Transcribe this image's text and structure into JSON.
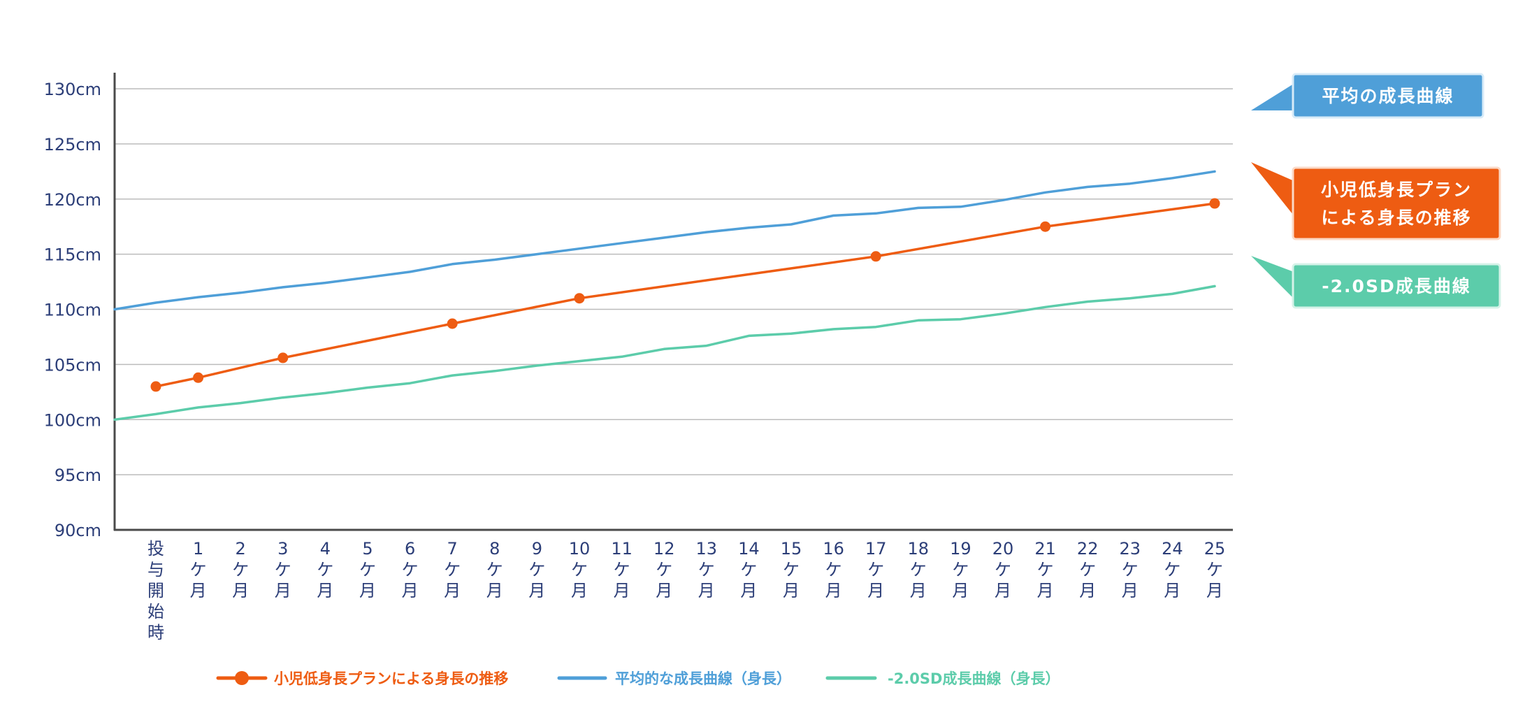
{
  "chart_data": {
    "type": "line",
    "ylim": [
      90,
      130
    ],
    "y_tick_labels": [
      "90cm",
      "95cm",
      "100cm",
      "105cm",
      "110cm",
      "115cm",
      "120cm",
      "125cm",
      "130cm"
    ],
    "y_tick_values": [
      90,
      95,
      100,
      105,
      110,
      115,
      120,
      125,
      130
    ],
    "x_tick_labels": [
      [
        "投",
        "与",
        "開",
        "始",
        "時"
      ],
      [
        "1",
        "ケ",
        "月"
      ],
      [
        "2",
        "ケ",
        "月"
      ],
      [
        "3",
        "ケ",
        "月"
      ],
      [
        "4",
        "ケ",
        "月"
      ],
      [
        "5",
        "ケ",
        "月"
      ],
      [
        "6",
        "ケ",
        "月"
      ],
      [
        "7",
        "ケ",
        "月"
      ],
      [
        "8",
        "ケ",
        "月"
      ],
      [
        "9",
        "ケ",
        "月"
      ],
      [
        "10",
        "ケ",
        "月"
      ],
      [
        "11",
        "ケ",
        "月"
      ],
      [
        "12",
        "ケ",
        "月"
      ],
      [
        "13",
        "ケ",
        "月"
      ],
      [
        "14",
        "ケ",
        "月"
      ],
      [
        "15",
        "ケ",
        "月"
      ],
      [
        "16",
        "ケ",
        "月"
      ],
      [
        "17",
        "ケ",
        "月"
      ],
      [
        "18",
        "ケ",
        "月"
      ],
      [
        "19",
        "ケ",
        "月"
      ],
      [
        "20",
        "ケ",
        "月"
      ],
      [
        "21",
        "ケ",
        "月"
      ],
      [
        "22",
        "ケ",
        "月"
      ],
      [
        "23",
        "ケ",
        "月"
      ],
      [
        "24",
        "ケ",
        "月"
      ],
      [
        "25",
        "ケ",
        "月"
      ]
    ],
    "grid": true,
    "series": [
      {
        "name": "平均的な成長曲線（身長）",
        "color": "#4f9fd8",
        "x": [
          -1,
          0,
          1,
          2,
          3,
          4,
          5,
          6,
          7,
          8,
          9,
          10,
          11,
          12,
          13,
          14,
          15,
          16,
          17,
          18,
          19,
          20,
          21,
          22,
          23,
          24,
          25
        ],
        "values": [
          110.0,
          110.6,
          111.1,
          111.5,
          112.0,
          112.4,
          112.9,
          113.4,
          114.1,
          114.5,
          115.0,
          115.5,
          116.0,
          116.5,
          117.0,
          117.4,
          117.7,
          118.5,
          118.7,
          119.2,
          119.3,
          119.9,
          120.6,
          121.1,
          121.4,
          121.9,
          122.5
        ]
      },
      {
        "name": "-2.0SD成長曲線（身長）",
        "color": "#5cccaa",
        "x": [
          -1,
          0,
          1,
          2,
          3,
          4,
          5,
          6,
          7,
          8,
          9,
          10,
          11,
          12,
          13,
          14,
          15,
          16,
          17,
          18,
          19,
          20,
          21,
          22,
          23,
          24,
          25
        ],
        "values": [
          100.0,
          100.5,
          101.1,
          101.5,
          102.0,
          102.4,
          102.9,
          103.3,
          104.0,
          104.4,
          104.9,
          105.3,
          105.7,
          106.4,
          106.7,
          107.6,
          107.8,
          108.2,
          108.4,
          109.0,
          109.1,
          109.6,
          110.2,
          110.7,
          111.0,
          111.4,
          112.1
        ]
      },
      {
        "name": "小児低身長プランによる身長の推移",
        "color": "#ee5c12",
        "markers": true,
        "x": [
          0,
          1,
          3,
          7,
          10,
          17,
          21,
          25
        ],
        "values": [
          103.0,
          103.8,
          105.6,
          108.7,
          111.0,
          114.8,
          117.5,
          119.6
        ]
      }
    ],
    "callouts": [
      {
        "lines": [
          "平均の成長曲線"
        ],
        "color": "#4f9fd8",
        "border": "#d7ebf8"
      },
      {
        "lines": [
          "小児低身長プラン",
          "による身長の推移"
        ],
        "color": "#ee5c12",
        "border": "#fbd9c6"
      },
      {
        "lines": [
          "-2.0SD成長曲線"
        ],
        "color": "#5cccaa",
        "border": "#d5f2e8"
      }
    ],
    "legend_position": "bottom",
    "legend": [
      {
        "label": "小児低身長プランによる身長の推移",
        "color": "#ee5c12",
        "marker": true
      },
      {
        "label": "平均的な成長曲線（身長）",
        "color": "#4f9fd8",
        "marker": false
      },
      {
        "label": "-2.0SD成長曲線（身長）",
        "color": "#5cccaa",
        "marker": false
      }
    ],
    "colors": {
      "axis": "#4a4a4a",
      "grid": "#bcbcbc",
      "tick_text": "#2c3e78"
    }
  }
}
